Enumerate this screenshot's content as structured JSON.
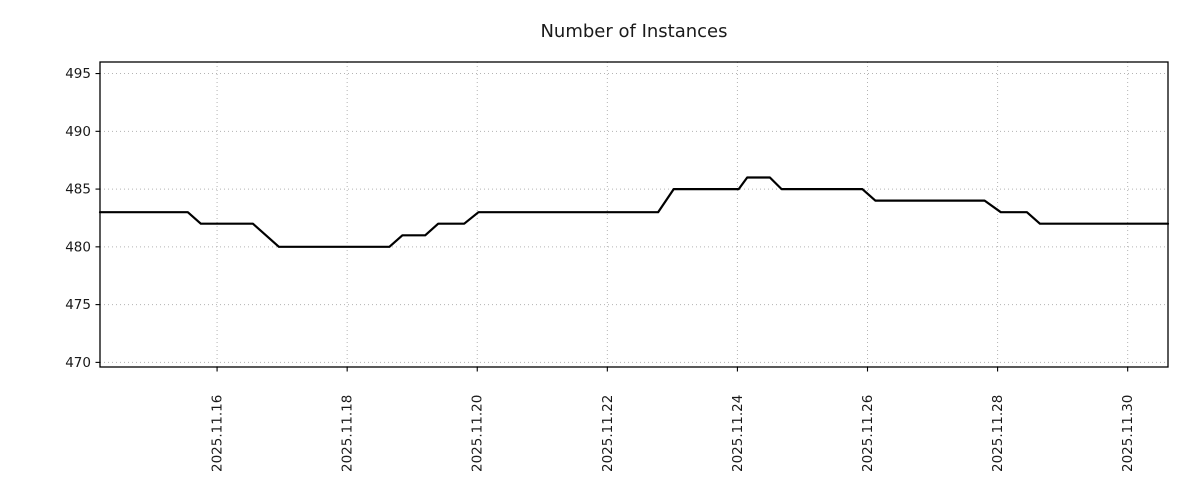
{
  "chart_data": {
    "type": "line",
    "title": "Number of Instances",
    "xlabel": "",
    "ylabel": "",
    "x_unit": "day of month, November 2025",
    "xlim_days": [
      14.2,
      30.62
    ],
    "ylim": [
      469.6,
      496.0
    ],
    "yticks": [
      470,
      475,
      480,
      485,
      490,
      495
    ],
    "xticks": [
      {
        "day": 16,
        "label": "2025.11.16"
      },
      {
        "day": 18,
        "label": "2025.11.18"
      },
      {
        "day": 20,
        "label": "2025.11.20"
      },
      {
        "day": 22,
        "label": "2025.11.22"
      },
      {
        "day": 24,
        "label": "2025.11.24"
      },
      {
        "day": 26,
        "label": "2025.11.26"
      },
      {
        "day": 28,
        "label": "2025.11.28"
      },
      {
        "day": 30,
        "label": "2025.11.30"
      }
    ],
    "grid": true,
    "legend": "none",
    "series": [
      {
        "name": "Number of Instances",
        "color": "#000000",
        "points_day_value": [
          [
            14.2,
            483
          ],
          [
            15.55,
            483
          ],
          [
            15.75,
            482
          ],
          [
            16.55,
            482
          ],
          [
            16.95,
            480
          ],
          [
            18.65,
            480
          ],
          [
            18.85,
            481
          ],
          [
            19.2,
            481
          ],
          [
            19.4,
            482
          ],
          [
            19.8,
            482
          ],
          [
            20.02,
            483
          ],
          [
            22.78,
            483
          ],
          [
            23.02,
            485
          ],
          [
            24.02,
            485
          ],
          [
            24.15,
            486
          ],
          [
            24.5,
            486
          ],
          [
            24.68,
            485
          ],
          [
            25.92,
            485
          ],
          [
            26.12,
            484
          ],
          [
            27.8,
            484
          ],
          [
            28.05,
            483
          ],
          [
            28.45,
            483
          ],
          [
            28.65,
            482
          ],
          [
            30.62,
            482
          ]
        ]
      }
    ],
    "colors": {
      "line": "#000000",
      "grid": "#b3b3b3",
      "axis": "#000000",
      "text": "#1a1a1a"
    }
  }
}
